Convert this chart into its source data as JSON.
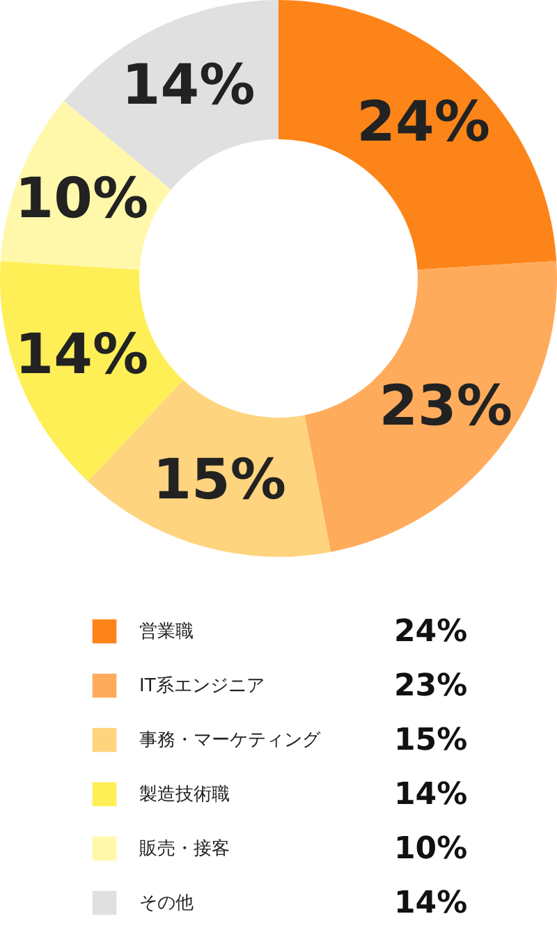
{
  "chart_data": {
    "type": "donut",
    "categories": [
      "営業職",
      "IT系エンジニア",
      "事務・マーケティング",
      "製造技術職",
      "販売・接客",
      "その他"
    ],
    "values": [
      24,
      23,
      15,
      14,
      10,
      14
    ],
    "value_labels": [
      "24%",
      "23%",
      "15%",
      "14%",
      "10%",
      "14%"
    ],
    "colors": [
      "#fd8418",
      "#ffab5c",
      "#ffd47e",
      "#ffef57",
      "#fff8aa",
      "#e0e0e0"
    ],
    "legend": "bottom"
  }
}
